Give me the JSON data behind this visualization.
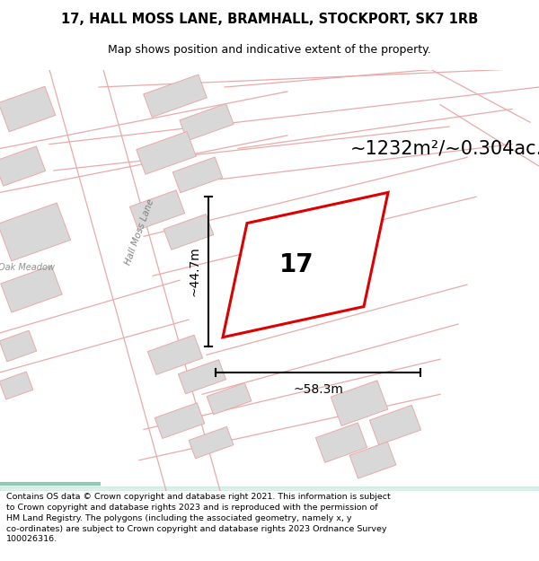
{
  "title_line1": "17, HALL MOSS LANE, BRAMHALL, STOCKPORT, SK7 1RB",
  "title_line2": "Map shows position and indicative extent of the property.",
  "area_text": "~1232m²/~0.304ac.",
  "width_label": "~58.3m",
  "height_label": "~44.7m",
  "number_label": "17",
  "footer_lines": [
    "Contains OS data © Crown copyright and database right 2021. This information is subject",
    "to Crown copyright and database rights 2023 and is reproduced with the permission of",
    "HM Land Registry. The polygons (including the associated geometry, namely x, y",
    "co-ordinates) are subject to Crown copyright and database rights 2023 Ordnance Survey",
    "100026316."
  ],
  "bg_color": "#ffffff",
  "map_bg": "#ffffff",
  "plot_color": "#dd0000",
  "road_color": "#e8aaaa",
  "building_color": "#d8d8d8",
  "building_edge": "#e8aaaa",
  "footer_bg": "#e0e0e0",
  "street_label": "Hall Moss Lane",
  "oak_meadow_label": "Oak Meadow",
  "title_fontsize": 10.5,
  "subtitle_fontsize": 9.0,
  "area_fontsize": 15,
  "number_fontsize": 20,
  "dim_fontsize": 10,
  "footer_fontsize": 6.8,
  "fig_width": 6.0,
  "fig_height": 6.25
}
